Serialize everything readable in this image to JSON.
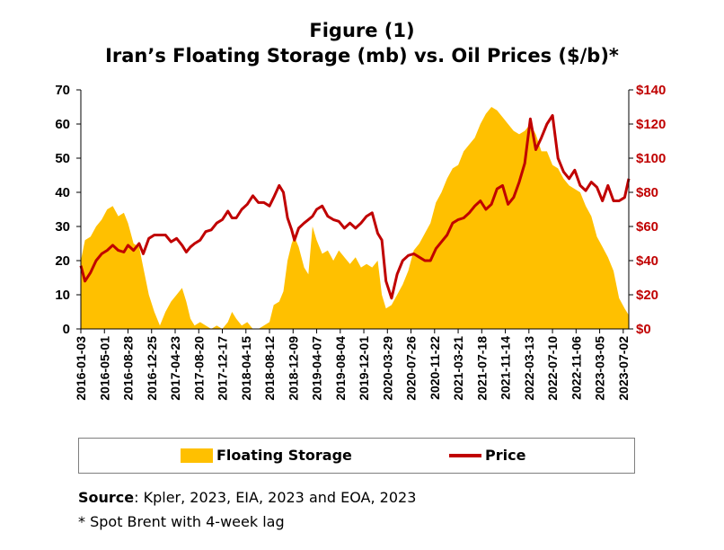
{
  "title_line1": "Figure (1)",
  "title_line2": "Iran’s Floating Storage (mb) vs. Oil Prices ($/b)*",
  "legend": {
    "area_label": "Floating Storage",
    "line_label": "Price"
  },
  "source": {
    "label": "Source",
    "text": ": Kpler, 2023, EIA, 2023 and EOA, 2023"
  },
  "note": "* Spot Brent with 4-week lag",
  "colors": {
    "area": "#FFC000",
    "line": "#C00000",
    "right_axis_text": "#C00000"
  },
  "chart_data": {
    "type": "area+line",
    "x_tick_labels": [
      "2016-01-03",
      "2016-05-01",
      "2016-08-28",
      "2016-12-25",
      "2017-04-23",
      "2017-08-20",
      "2017-12-17",
      "2018-04-15",
      "2018-08-12",
      "2018-12-09",
      "2019-04-07",
      "2019-08-04",
      "2019-12-01",
      "2020-03-29",
      "2020-07-26",
      "2020-11-22",
      "2021-03-21",
      "2021-07-18",
      "2021-11-14",
      "2022-03-13",
      "2022-07-10",
      "2022-11-06",
      "2023-03-05",
      "2023-07-02"
    ],
    "y_left": {
      "min": 0,
      "max": 70,
      "step": 10,
      "ticks": [
        "0",
        "10",
        "20",
        "30",
        "40",
        "50",
        "60",
        "70"
      ]
    },
    "y_right": {
      "min": 0,
      "max": 140,
      "step": 20,
      "ticks": [
        "$0",
        "$20",
        "$40",
        "$60",
        "$80",
        "$100",
        "$120",
        "$140"
      ]
    },
    "series": [
      {
        "name": "Floating Storage",
        "axis": "left",
        "style": "area",
        "points": [
          [
            "2016-01-03",
            20
          ],
          [
            "2016-01-24",
            26
          ],
          [
            "2016-02-21",
            27
          ],
          [
            "2016-03-20",
            30
          ],
          [
            "2016-04-17",
            32
          ],
          [
            "2016-05-15",
            35
          ],
          [
            "2016-06-12",
            36
          ],
          [
            "2016-07-10",
            33
          ],
          [
            "2016-08-07",
            34
          ],
          [
            "2016-08-28",
            31
          ],
          [
            "2016-09-25",
            25
          ],
          [
            "2016-10-23",
            24
          ],
          [
            "2016-11-13",
            18
          ],
          [
            "2016-12-11",
            10
          ],
          [
            "2017-01-08",
            5
          ],
          [
            "2017-02-05",
            1
          ],
          [
            "2017-03-05",
            5
          ],
          [
            "2017-04-02",
            8
          ],
          [
            "2017-04-30",
            10
          ],
          [
            "2017-05-28",
            12
          ],
          [
            "2017-06-18",
            8
          ],
          [
            "2017-07-09",
            3
          ],
          [
            "2017-07-30",
            1
          ],
          [
            "2017-08-27",
            2
          ],
          [
            "2017-09-24",
            1
          ],
          [
            "2017-10-22",
            0
          ],
          [
            "2017-11-19",
            1
          ],
          [
            "2017-12-17",
            0
          ],
          [
            "2018-01-14",
            2
          ],
          [
            "2018-02-04",
            5
          ],
          [
            "2018-02-25",
            3
          ],
          [
            "2018-03-25",
            1
          ],
          [
            "2018-04-22",
            2
          ],
          [
            "2018-05-20",
            0
          ],
          [
            "2018-06-17",
            0
          ],
          [
            "2018-07-15",
            1
          ],
          [
            "2018-08-12",
            2
          ],
          [
            "2018-09-02",
            7
          ],
          [
            "2018-09-30",
            8
          ],
          [
            "2018-10-21",
            11
          ],
          [
            "2018-11-11",
            20
          ],
          [
            "2018-12-02",
            25
          ],
          [
            "2018-12-16",
            27
          ],
          [
            "2019-01-06",
            24
          ],
          [
            "2019-02-03",
            18
          ],
          [
            "2019-02-24",
            16
          ],
          [
            "2019-03-17",
            30
          ],
          [
            "2019-04-07",
            26
          ],
          [
            "2019-05-05",
            22
          ],
          [
            "2019-06-02",
            23
          ],
          [
            "2019-06-30",
            20
          ],
          [
            "2019-07-28",
            23
          ],
          [
            "2019-08-25",
            21
          ],
          [
            "2019-09-22",
            19
          ],
          [
            "2019-10-20",
            21
          ],
          [
            "2019-11-17",
            18
          ],
          [
            "2019-12-15",
            19
          ],
          [
            "2020-01-12",
            18
          ],
          [
            "2020-02-09",
            20
          ],
          [
            "2020-03-01",
            10
          ],
          [
            "2020-03-22",
            6
          ],
          [
            "2020-04-19",
            7
          ],
          [
            "2020-05-17",
            10
          ],
          [
            "2020-06-14",
            13
          ],
          [
            "2020-07-12",
            17
          ],
          [
            "2020-08-09",
            23
          ],
          [
            "2020-09-06",
            25
          ],
          [
            "2020-10-04",
            28
          ],
          [
            "2020-11-01",
            31
          ],
          [
            "2020-11-29",
            37
          ],
          [
            "2020-12-27",
            40
          ],
          [
            "2021-01-24",
            44
          ],
          [
            "2021-02-21",
            47
          ],
          [
            "2021-03-21",
            48
          ],
          [
            "2021-04-18",
            52
          ],
          [
            "2021-05-16",
            54
          ],
          [
            "2021-06-13",
            56
          ],
          [
            "2021-07-11",
            60
          ],
          [
            "2021-08-08",
            63
          ],
          [
            "2021-09-05",
            65
          ],
          [
            "2021-10-03",
            64
          ],
          [
            "2021-10-31",
            62
          ],
          [
            "2021-11-28",
            60
          ],
          [
            "2021-12-26",
            58
          ],
          [
            "2022-01-23",
            57
          ],
          [
            "2022-02-20",
            58
          ],
          [
            "2022-03-20",
            60
          ],
          [
            "2022-04-17",
            57
          ],
          [
            "2022-05-15",
            52
          ],
          [
            "2022-06-12",
            52
          ],
          [
            "2022-07-10",
            48
          ],
          [
            "2022-08-07",
            47
          ],
          [
            "2022-09-04",
            44
          ],
          [
            "2022-10-02",
            42
          ],
          [
            "2022-10-30",
            41
          ],
          [
            "2022-11-27",
            40
          ],
          [
            "2022-12-25",
            36
          ],
          [
            "2023-01-22",
            33
          ],
          [
            "2023-02-19",
            27
          ],
          [
            "2023-03-19",
            24
          ],
          [
            "2023-04-16",
            21
          ],
          [
            "2023-05-14",
            17
          ],
          [
            "2023-06-11",
            9
          ],
          [
            "2023-07-09",
            6
          ],
          [
            "2023-07-30",
            4
          ]
        ]
      },
      {
        "name": "Price",
        "axis": "right",
        "style": "line",
        "points": [
          [
            "2016-01-03",
            37
          ],
          [
            "2016-01-24",
            28
          ],
          [
            "2016-02-21",
            33
          ],
          [
            "2016-03-20",
            40
          ],
          [
            "2016-04-17",
            44
          ],
          [
            "2016-05-15",
            46
          ],
          [
            "2016-06-12",
            49
          ],
          [
            "2016-07-10",
            46
          ],
          [
            "2016-08-07",
            45
          ],
          [
            "2016-08-28",
            49
          ],
          [
            "2016-09-25",
            46
          ],
          [
            "2016-10-23",
            50
          ],
          [
            "2016-11-13",
            44
          ],
          [
            "2016-12-11",
            53
          ],
          [
            "2017-01-08",
            55
          ],
          [
            "2017-02-05",
            55
          ],
          [
            "2017-03-05",
            55
          ],
          [
            "2017-04-02",
            51
          ],
          [
            "2017-04-30",
            53
          ],
          [
            "2017-05-28",
            49
          ],
          [
            "2017-06-18",
            45
          ],
          [
            "2017-07-09",
            48
          ],
          [
            "2017-07-30",
            50
          ],
          [
            "2017-08-27",
            52
          ],
          [
            "2017-09-24",
            57
          ],
          [
            "2017-10-22",
            58
          ],
          [
            "2017-11-19",
            62
          ],
          [
            "2017-12-17",
            64
          ],
          [
            "2018-01-14",
            69
          ],
          [
            "2018-02-04",
            65
          ],
          [
            "2018-02-25",
            65
          ],
          [
            "2018-03-25",
            70
          ],
          [
            "2018-04-22",
            73
          ],
          [
            "2018-05-20",
            78
          ],
          [
            "2018-06-17",
            74
          ],
          [
            "2018-07-15",
            74
          ],
          [
            "2018-08-12",
            72
          ],
          [
            "2018-09-02",
            77
          ],
          [
            "2018-09-30",
            84
          ],
          [
            "2018-10-21",
            80
          ],
          [
            "2018-11-11",
            65
          ],
          [
            "2018-12-02",
            58
          ],
          [
            "2018-12-16",
            52
          ],
          [
            "2019-01-06",
            59
          ],
          [
            "2019-02-03",
            62
          ],
          [
            "2019-02-24",
            64
          ],
          [
            "2019-03-17",
            66
          ],
          [
            "2019-04-07",
            70
          ],
          [
            "2019-05-05",
            72
          ],
          [
            "2019-06-02",
            66
          ],
          [
            "2019-06-30",
            64
          ],
          [
            "2019-07-28",
            63
          ],
          [
            "2019-08-25",
            59
          ],
          [
            "2019-09-22",
            62
          ],
          [
            "2019-10-20",
            59
          ],
          [
            "2019-11-17",
            62
          ],
          [
            "2019-12-15",
            66
          ],
          [
            "2020-01-12",
            68
          ],
          [
            "2020-02-09",
            56
          ],
          [
            "2020-03-01",
            52
          ],
          [
            "2020-03-22",
            28
          ],
          [
            "2020-04-19",
            18
          ],
          [
            "2020-05-17",
            32
          ],
          [
            "2020-06-14",
            40
          ],
          [
            "2020-07-12",
            43
          ],
          [
            "2020-08-09",
            44
          ],
          [
            "2020-09-06",
            42
          ],
          [
            "2020-10-04",
            40
          ],
          [
            "2020-11-01",
            40
          ],
          [
            "2020-11-29",
            47
          ],
          [
            "2020-12-27",
            51
          ],
          [
            "2021-01-24",
            55
          ],
          [
            "2021-02-21",
            62
          ],
          [
            "2021-03-21",
            64
          ],
          [
            "2021-04-18",
            65
          ],
          [
            "2021-05-16",
            68
          ],
          [
            "2021-06-13",
            72
          ],
          [
            "2021-07-11",
            75
          ],
          [
            "2021-08-08",
            70
          ],
          [
            "2021-09-05",
            73
          ],
          [
            "2021-10-03",
            82
          ],
          [
            "2021-10-31",
            84
          ],
          [
            "2021-11-28",
            73
          ],
          [
            "2021-12-26",
            77
          ],
          [
            "2022-01-23",
            86
          ],
          [
            "2022-02-20",
            97
          ],
          [
            "2022-03-20",
            123
          ],
          [
            "2022-04-17",
            105
          ],
          [
            "2022-05-15",
            112
          ],
          [
            "2022-06-12",
            120
          ],
          [
            "2022-07-10",
            125
          ],
          [
            "2022-08-07",
            100
          ],
          [
            "2022-09-04",
            92
          ],
          [
            "2022-10-02",
            88
          ],
          [
            "2022-10-30",
            93
          ],
          [
            "2022-11-27",
            84
          ],
          [
            "2022-12-25",
            81
          ],
          [
            "2023-01-22",
            86
          ],
          [
            "2023-02-19",
            83
          ],
          [
            "2023-03-19",
            75
          ],
          [
            "2023-04-16",
            84
          ],
          [
            "2023-05-14",
            75
          ],
          [
            "2023-06-11",
            75
          ],
          [
            "2023-07-09",
            77
          ],
          [
            "2023-07-30",
            88
          ]
        ]
      }
    ]
  }
}
